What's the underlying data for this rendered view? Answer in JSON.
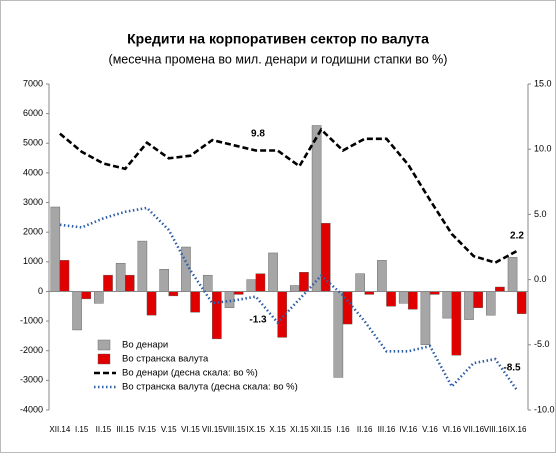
{
  "chart_data": {
    "type": "bar",
    "title": "Кредити на корпоративен сектор по валута",
    "subtitle": "(месечна промена во мил. денари и годишни стапки во %)",
    "categories": [
      "XII.14",
      "I.15",
      "II.15",
      "III.15",
      "IV.15",
      "V.15",
      "VI.15",
      "VII.15",
      "VIII.15",
      "IX.15",
      "X.15",
      "XI.15",
      "XII.15",
      "I.16",
      "II.16",
      "III.16",
      "IV.16",
      "V.16",
      "VI.16",
      "VII.16",
      "VIII.16",
      "IX.16"
    ],
    "series": [
      {
        "name": "Во денари",
        "type": "bar",
        "color": "#a6a6a6",
        "values": [
          2850,
          -1300,
          -400,
          950,
          1700,
          750,
          1500,
          550,
          -550,
          400,
          1300,
          200,
          5600,
          -2900,
          600,
          1050,
          -400,
          -1800,
          -900,
          -950,
          -800,
          1150
        ]
      },
      {
        "name": "Во странска валута",
        "type": "bar",
        "color": "#e00000",
        "values": [
          1050,
          -250,
          550,
          550,
          -800,
          -150,
          -700,
          -1600,
          -100,
          600,
          -1550,
          650,
          2300,
          -1100,
          -100,
          -500,
          -600,
          -100,
          -2150,
          -550,
          150,
          -750
        ]
      },
      {
        "name": "Во денари  (десна скала: во %)",
        "type": "line",
        "axis": "y2",
        "color": "#000000",
        "values": [
          11.2,
          9.8,
          8.9,
          8.5,
          10.5,
          9.3,
          9.5,
          10.7,
          10.3,
          9.9,
          9.9,
          8.7,
          11.5,
          9.9,
          10.8,
          10.8,
          8.8,
          6.1,
          3.5,
          1.8,
          1.3,
          2.2
        ]
      },
      {
        "name": "Во странска валута  (десна скала: во %)",
        "type": "line",
        "axis": "y2",
        "color": "#2e5ea8",
        "values": [
          4.2,
          4.0,
          4.7,
          5.2,
          5.5,
          3.8,
          0.7,
          -1.8,
          -1.6,
          -1.3,
          -3.3,
          -1.5,
          0.3,
          -1.2,
          -3.2,
          -5.5,
          -5.5,
          -5.1,
          -8.2,
          -6.4,
          -6.1,
          -8.5
        ]
      }
    ],
    "annotations": [
      "9.8",
      "-1.3",
      "2.2",
      "-8.5"
    ],
    "ylim": [
      -4000,
      7000
    ],
    "yticks": [
      -4000,
      -3000,
      -2000,
      -1000,
      0,
      1000,
      2000,
      3000,
      4000,
      5000,
      6000,
      7000
    ],
    "y2lim": [
      -10,
      15
    ],
    "y2ticks": [
      {
        "value": -10,
        "label": "-10.0"
      },
      {
        "value": -5,
        "label": "-5.0"
      },
      {
        "value": 0,
        "label": "0.0"
      },
      {
        "value": 5,
        "label": "5.0"
      },
      {
        "value": 10,
        "label": "10.0"
      },
      {
        "value": 15,
        "label": "15.0"
      }
    ]
  }
}
